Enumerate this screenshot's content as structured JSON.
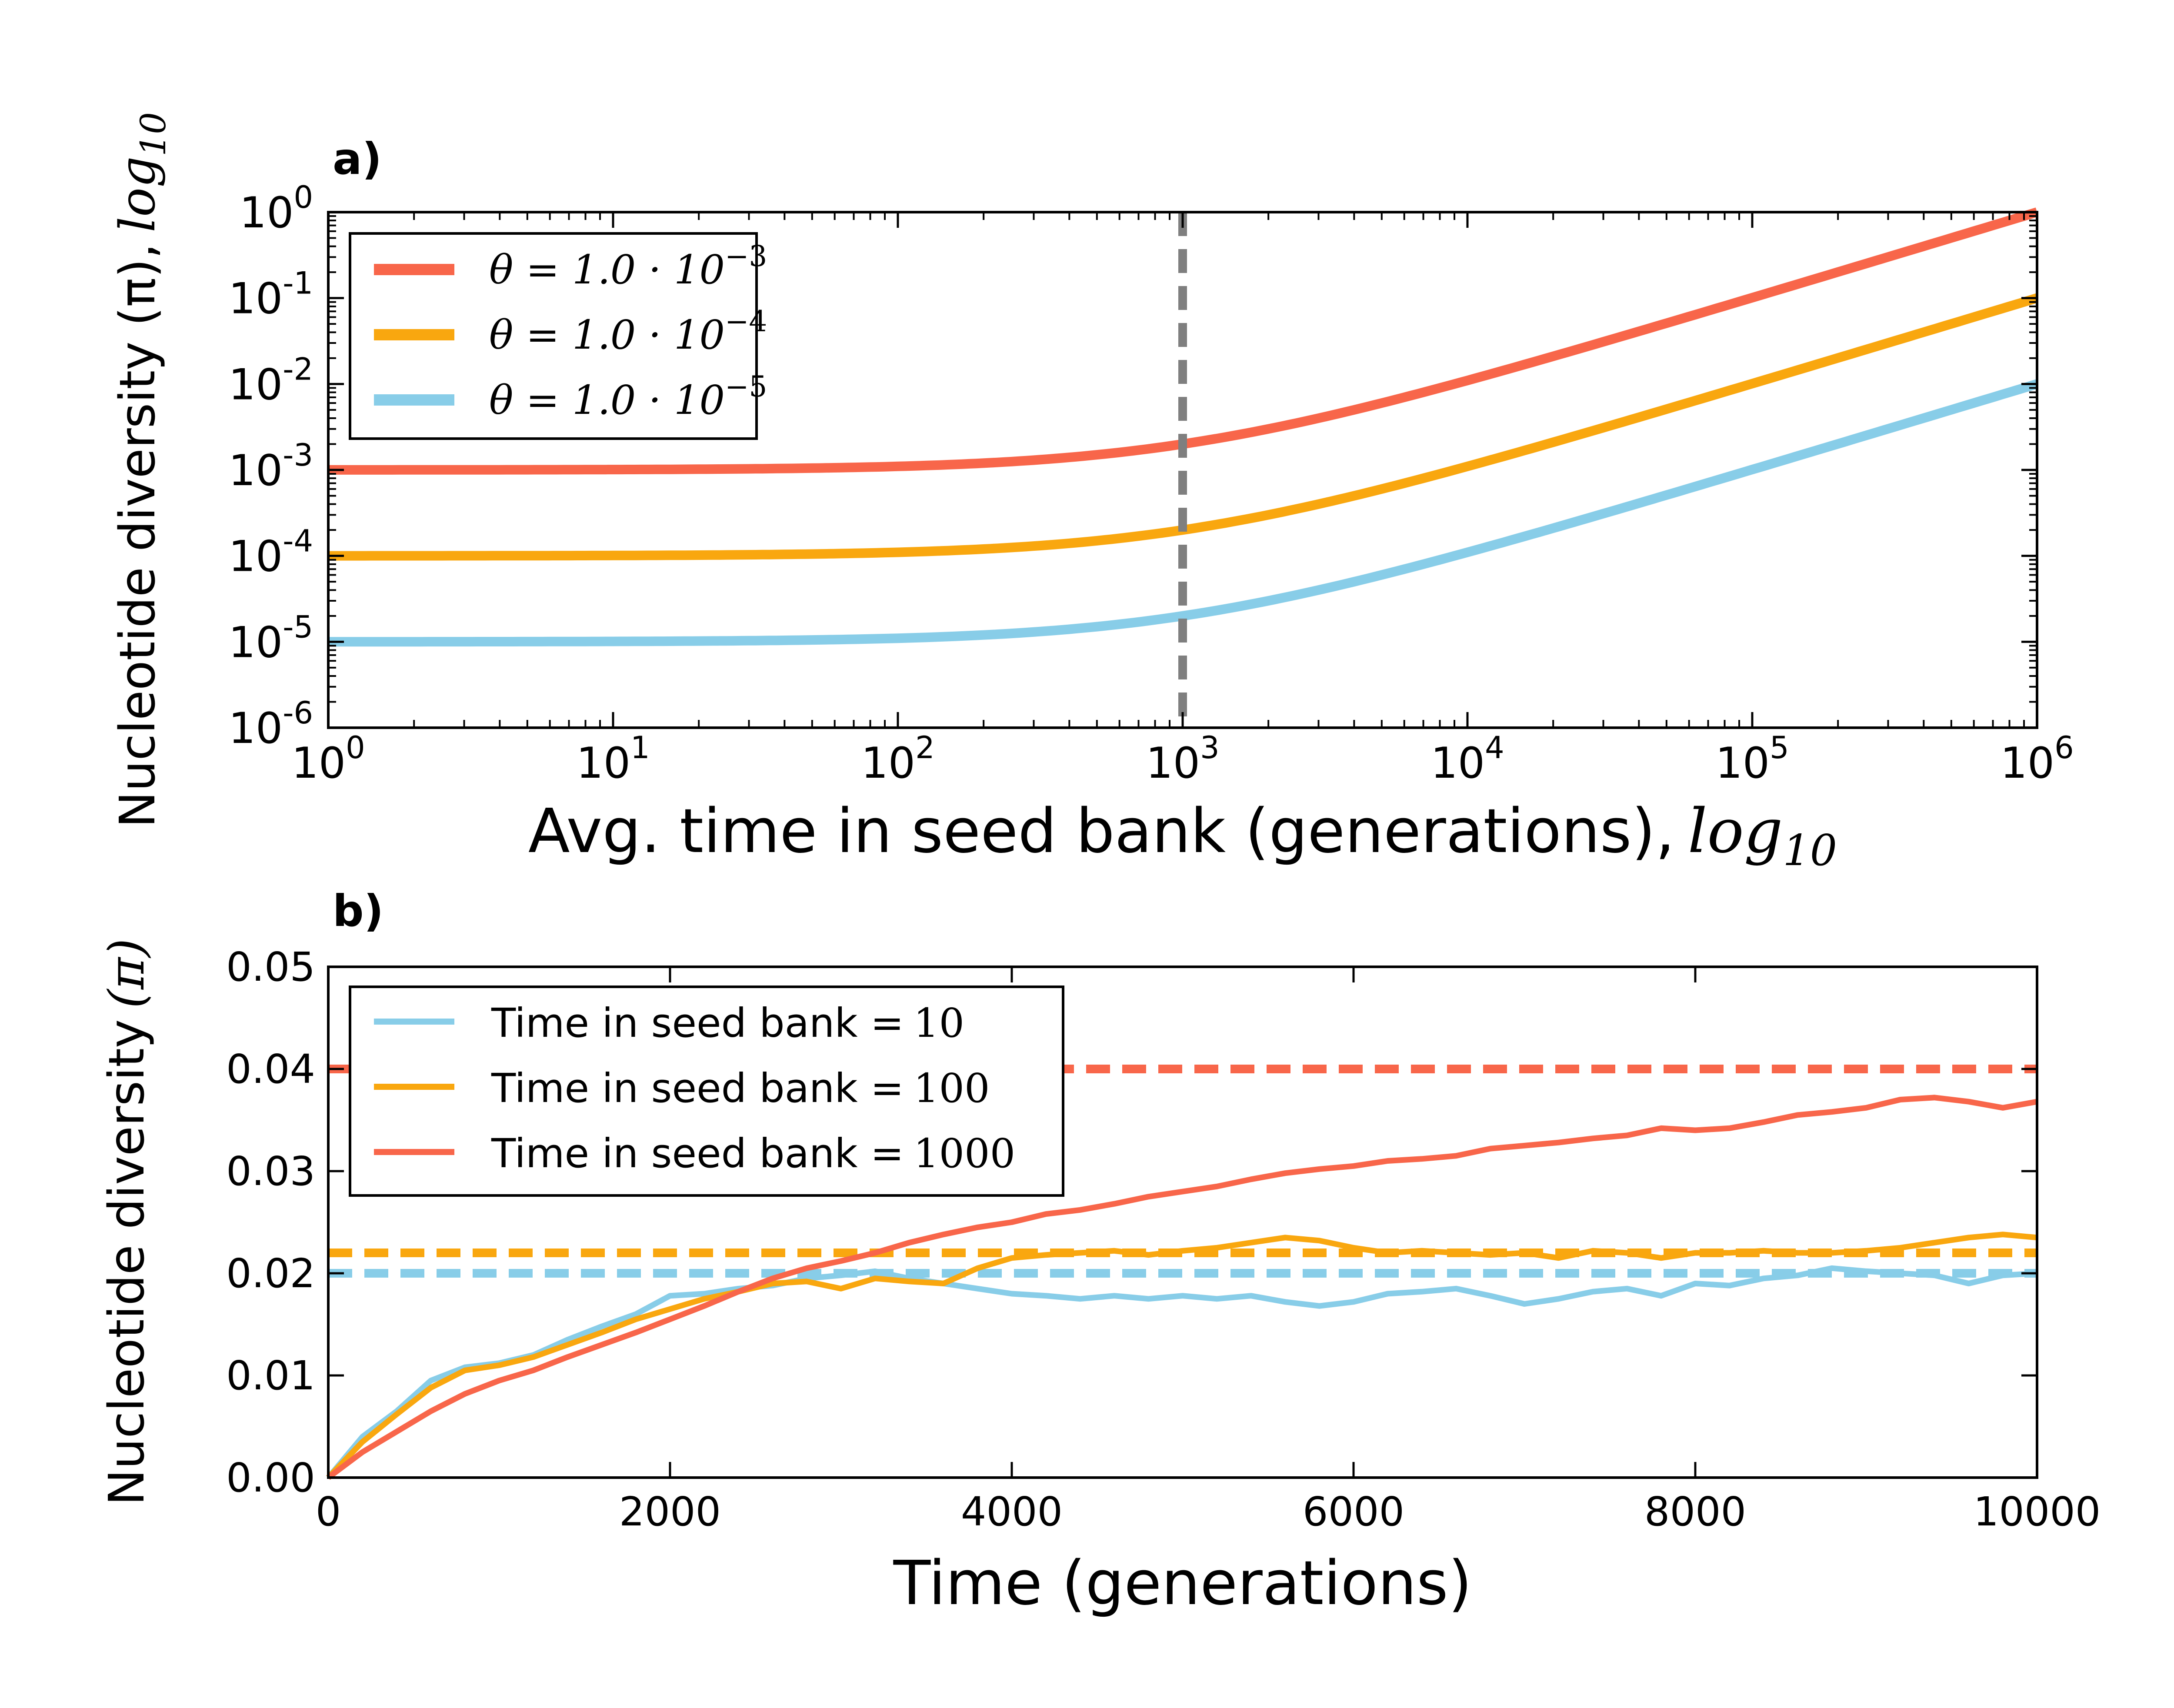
{
  "chart_data": [
    {
      "panel_label": "a)",
      "type": "line",
      "xscale": "log",
      "yscale": "log",
      "xlim": [
        1,
        1000000
      ],
      "ylim": [
        1e-06,
        1
      ],
      "xlabel": "Avg. time in seed bank (generations),",
      "xlabel_math": "log",
      "xlabel_sub": "10",
      "ylabel": "Nucleotide diversity (π),",
      "ylabel_math": "log",
      "ylabel_sub": "10",
      "x_ticks": [
        {
          "value": 1,
          "base": "10",
          "exp": "0"
        },
        {
          "value": 10,
          "base": "10",
          "exp": "1"
        },
        {
          "value": 100,
          "base": "10",
          "exp": "2"
        },
        {
          "value": 1000,
          "base": "10",
          "exp": "3"
        },
        {
          "value": 10000,
          "base": "10",
          "exp": "4"
        },
        {
          "value": 100000,
          "base": "10",
          "exp": "5"
        },
        {
          "value": 1000000,
          "base": "10",
          "exp": "6"
        }
      ],
      "y_ticks": [
        {
          "value": 1e-06,
          "base": "10",
          "exp": "-6"
        },
        {
          "value": 1e-05,
          "base": "10",
          "exp": "-5"
        },
        {
          "value": 0.0001,
          "base": "10",
          "exp": "-4"
        },
        {
          "value": 0.001,
          "base": "10",
          "exp": "-3"
        },
        {
          "value": 0.01,
          "base": "10",
          "exp": "-2"
        },
        {
          "value": 0.1,
          "base": "10",
          "exp": "-1"
        },
        {
          "value": 1,
          "base": "10",
          "exp": "0"
        }
      ],
      "vline": {
        "x": 1000,
        "color": "#7f7f7f",
        "style": "dashed"
      },
      "legend_position": "upper-left",
      "series": [
        {
          "name": "θ = 1.0 · 10",
          "name_exp": "−3",
          "color": "#f8664a",
          "theta": 0.001,
          "x": [
            1,
            10,
            100,
            300,
            1000,
            3000,
            10000,
            100000,
            1000000
          ],
          "y": [
            0.001001,
            0.00101,
            0.0011,
            0.0013,
            0.002,
            0.004,
            0.011,
            0.101,
            1.001
          ]
        },
        {
          "name": "θ = 1.0 · 10",
          "name_exp": "−4",
          "color": "#f9a70f",
          "theta": 0.0001,
          "x": [
            1,
            10,
            100,
            300,
            1000,
            3000,
            10000,
            100000,
            1000000
          ],
          "y": [
            0.0001001,
            0.000101,
            0.00011,
            0.00013,
            0.0002,
            0.0004,
            0.0011,
            0.0101,
            0.1001
          ]
        },
        {
          "name": "θ = 1.0 · 10",
          "name_exp": "−5",
          "color": "#88cde8",
          "theta": 1e-05,
          "x": [
            1,
            10,
            100,
            300,
            1000,
            3000,
            10000,
            100000,
            1000000
          ],
          "y": [
            1.001e-05,
            1.01e-05,
            1.1e-05,
            1.3e-05,
            2e-05,
            4e-05,
            0.00011,
            0.00101,
            0.01001
          ]
        }
      ]
    },
    {
      "panel_label": "b)",
      "type": "line",
      "xlim": [
        0,
        10000
      ],
      "ylim": [
        0,
        0.05
      ],
      "xlabel": "Time (generations)",
      "ylabel": "Nucleotide diversity",
      "ylabel_math": "(π)",
      "x_ticks": [
        {
          "value": 0,
          "label": "0"
        },
        {
          "value": 2000,
          "label": "2000"
        },
        {
          "value": 4000,
          "label": "4000"
        },
        {
          "value": 6000,
          "label": "6000"
        },
        {
          "value": 8000,
          "label": "8000"
        },
        {
          "value": 10000,
          "label": "10000"
        }
      ],
      "y_ticks": [
        {
          "value": 0,
          "label": "0.00"
        },
        {
          "value": 0.01,
          "label": "0.01"
        },
        {
          "value": 0.02,
          "label": "0.02"
        },
        {
          "value": 0.03,
          "label": "0.03"
        },
        {
          "value": 0.04,
          "label": "0.04"
        },
        {
          "value": 0.05,
          "label": "0.05"
        }
      ],
      "legend_position": "upper-left",
      "hlines": [
        {
          "y": 0.04,
          "color": "#f8664a",
          "style": "dashed"
        },
        {
          "y": 0.022,
          "color": "#f9a70f",
          "style": "dashed"
        },
        {
          "y": 0.02,
          "color": "#88cde8",
          "style": "dashed"
        }
      ],
      "series": [
        {
          "name": "Time in seed bank =",
          "name_value": "10",
          "color": "#88cde8",
          "x": [
            0,
            200,
            400,
            600,
            800,
            1000,
            1200,
            1400,
            1600,
            1800,
            2000,
            2200,
            2400,
            2600,
            2800,
            3000,
            3200,
            3400,
            3600,
            3800,
            4000,
            4200,
            4400,
            4600,
            4800,
            5000,
            5200,
            5400,
            5600,
            5800,
            6000,
            6200,
            6400,
            6600,
            6800,
            7000,
            7200,
            7400,
            7600,
            7800,
            8000,
            8200,
            8400,
            8600,
            8800,
            9000,
            9200,
            9400,
            9600,
            9800,
            10000
          ],
          "y": [
            0,
            0.004,
            0.0065,
            0.0095,
            0.0108,
            0.0112,
            0.012,
            0.0135,
            0.0148,
            0.016,
            0.0178,
            0.018,
            0.0185,
            0.0188,
            0.0195,
            0.0198,
            0.0202,
            0.0195,
            0.019,
            0.0185,
            0.018,
            0.0178,
            0.0175,
            0.0178,
            0.0175,
            0.0178,
            0.0175,
            0.0178,
            0.0172,
            0.0168,
            0.0172,
            0.018,
            0.0182,
            0.0185,
            0.0178,
            0.017,
            0.0175,
            0.0182,
            0.0185,
            0.0178,
            0.019,
            0.0188,
            0.0195,
            0.0198,
            0.0205,
            0.0202,
            0.02,
            0.0198,
            0.019,
            0.0198,
            0.02
          ]
        },
        {
          "name": "Time in seed bank =",
          "name_value": "100",
          "color": "#f9a70f",
          "x": [
            0,
            200,
            400,
            600,
            800,
            1000,
            1200,
            1400,
            1600,
            1800,
            2000,
            2200,
            2400,
            2600,
            2800,
            3000,
            3200,
            3400,
            3600,
            3800,
            4000,
            4200,
            4400,
            4600,
            4800,
            5000,
            5200,
            5400,
            5600,
            5800,
            6000,
            6200,
            6400,
            6600,
            6800,
            7000,
            7200,
            7400,
            7600,
            7800,
            8000,
            8200,
            8400,
            8600,
            8800,
            9000,
            9200,
            9400,
            9600,
            9800,
            10000
          ],
          "y": [
            0,
            0.0035,
            0.0062,
            0.0088,
            0.0105,
            0.011,
            0.0118,
            0.013,
            0.0142,
            0.0155,
            0.0165,
            0.0175,
            0.0182,
            0.019,
            0.0192,
            0.0185,
            0.0195,
            0.0192,
            0.019,
            0.0205,
            0.0215,
            0.0218,
            0.022,
            0.0222,
            0.0218,
            0.0222,
            0.0225,
            0.023,
            0.0235,
            0.0232,
            0.0225,
            0.022,
            0.0222,
            0.022,
            0.0218,
            0.022,
            0.0215,
            0.0222,
            0.022,
            0.0215,
            0.022,
            0.022,
            0.0222,
            0.022,
            0.022,
            0.0222,
            0.0225,
            0.023,
            0.0235,
            0.0238,
            0.0235
          ]
        },
        {
          "name": "Time in seed bank =",
          "name_value": "1000",
          "color": "#f8664a",
          "x": [
            0,
            200,
            400,
            600,
            800,
            1000,
            1200,
            1400,
            1600,
            1800,
            2000,
            2200,
            2400,
            2600,
            2800,
            3000,
            3200,
            3400,
            3600,
            3800,
            4000,
            4200,
            4400,
            4600,
            4800,
            5000,
            5200,
            5400,
            5600,
            5800,
            6000,
            6200,
            6400,
            6600,
            6800,
            7000,
            7200,
            7400,
            7600,
            7800,
            8000,
            8200,
            8400,
            8600,
            8800,
            9000,
            9200,
            9400,
            9600,
            9800,
            10000
          ],
          "y": [
            0,
            0.0025,
            0.0045,
            0.0065,
            0.0082,
            0.0095,
            0.0105,
            0.0118,
            0.013,
            0.0142,
            0.0155,
            0.0168,
            0.0182,
            0.0195,
            0.0205,
            0.0212,
            0.022,
            0.023,
            0.0238,
            0.0245,
            0.025,
            0.0258,
            0.0262,
            0.0268,
            0.0275,
            0.028,
            0.0285,
            0.0292,
            0.0298,
            0.0302,
            0.0305,
            0.031,
            0.0312,
            0.0315,
            0.0322,
            0.0325,
            0.0328,
            0.0332,
            0.0335,
            0.0342,
            0.034,
            0.0342,
            0.0348,
            0.0355,
            0.0358,
            0.0362,
            0.037,
            0.0372,
            0.0368,
            0.0362,
            0.0368
          ]
        }
      ]
    }
  ]
}
